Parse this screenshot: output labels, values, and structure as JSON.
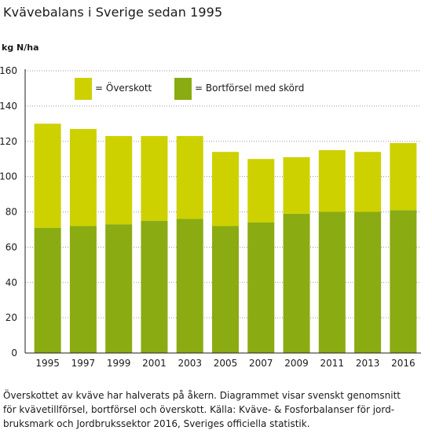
{
  "title": "Kvävebalans i Sverige sedan 1995",
  "caption": [
    "Överskottet av kväve har halverats på åkern. Diagrammet visar svenskt genomsnitt",
    "för kvävetillförsel, bortförsel och överskott. Källa: Kväve- & Fosforbalanser för jord-",
    "bruksmark och Jordbrukssektor 2016, Sveriges officiella statistik."
  ],
  "colors": {
    "surplus": "#cdd100",
    "removal": "#8aab12",
    "gridline": "#9a9a9a",
    "axis": "#222222"
  },
  "chart_data": {
    "type": "bar",
    "stacked": true,
    "title": "Kvävebalans i Sverige sedan 1995",
    "ylabel": "kg N/ha",
    "xlabel": "",
    "ylim": [
      0,
      160
    ],
    "yticks": [
      0,
      20,
      40,
      60,
      80,
      100,
      120,
      140,
      160
    ],
    "grid": true,
    "legend": "top",
    "categories": [
      "1995",
      "1997",
      "1999",
      "2001",
      "2003",
      "2005",
      "2007",
      "2009",
      "2011",
      "2013",
      "2016"
    ],
    "series": [
      {
        "name": "= Bortförsel med skörd",
        "color": "#8aab12",
        "values": [
          71,
          72,
          73,
          75,
          76,
          72,
          74,
          79,
          80,
          80,
          81
        ]
      },
      {
        "name": "= Överskott",
        "color": "#cdd100",
        "values": [
          59,
          55,
          50,
          48,
          47,
          42,
          36,
          32,
          35,
          34,
          38
        ]
      }
    ]
  }
}
